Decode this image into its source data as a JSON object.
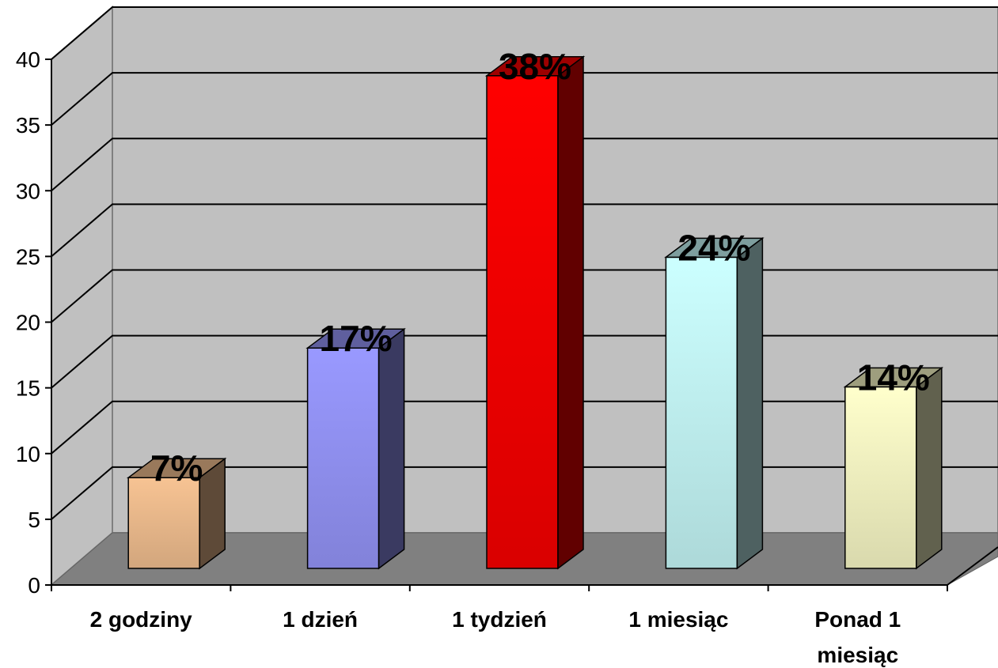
{
  "chart_data": {
    "type": "bar",
    "three_d": true,
    "categories": [
      "2 godziny",
      "1 dzień",
      "1 tydzień",
      "1 miesiąc",
      "Ponad 1 miesiąc"
    ],
    "category_lines": [
      [
        "2 godziny"
      ],
      [
        "1 dzień"
      ],
      [
        "1 tydzień"
      ],
      [
        "1 miesiąc"
      ],
      [
        "Ponad 1",
        "miesiąc"
      ]
    ],
    "values": [
      7,
      17,
      38,
      24,
      14
    ],
    "data_labels": [
      "7%",
      "17%",
      "38%",
      "24%",
      "14%"
    ],
    "yticks": [
      "0",
      "5",
      "10",
      "15",
      "20",
      "25",
      "30",
      "35",
      "40"
    ],
    "ylim": [
      0,
      40
    ],
    "grid": true,
    "legend": "none",
    "title": "",
    "xlabel": "",
    "ylabel": "",
    "colors": {
      "bars": [
        "#F7C393",
        "#9999FF",
        "#FF0000",
        "#CCFFFF",
        "#FFFFCC"
      ],
      "wall": "#C0C0C0",
      "floor": "#808080"
    }
  }
}
